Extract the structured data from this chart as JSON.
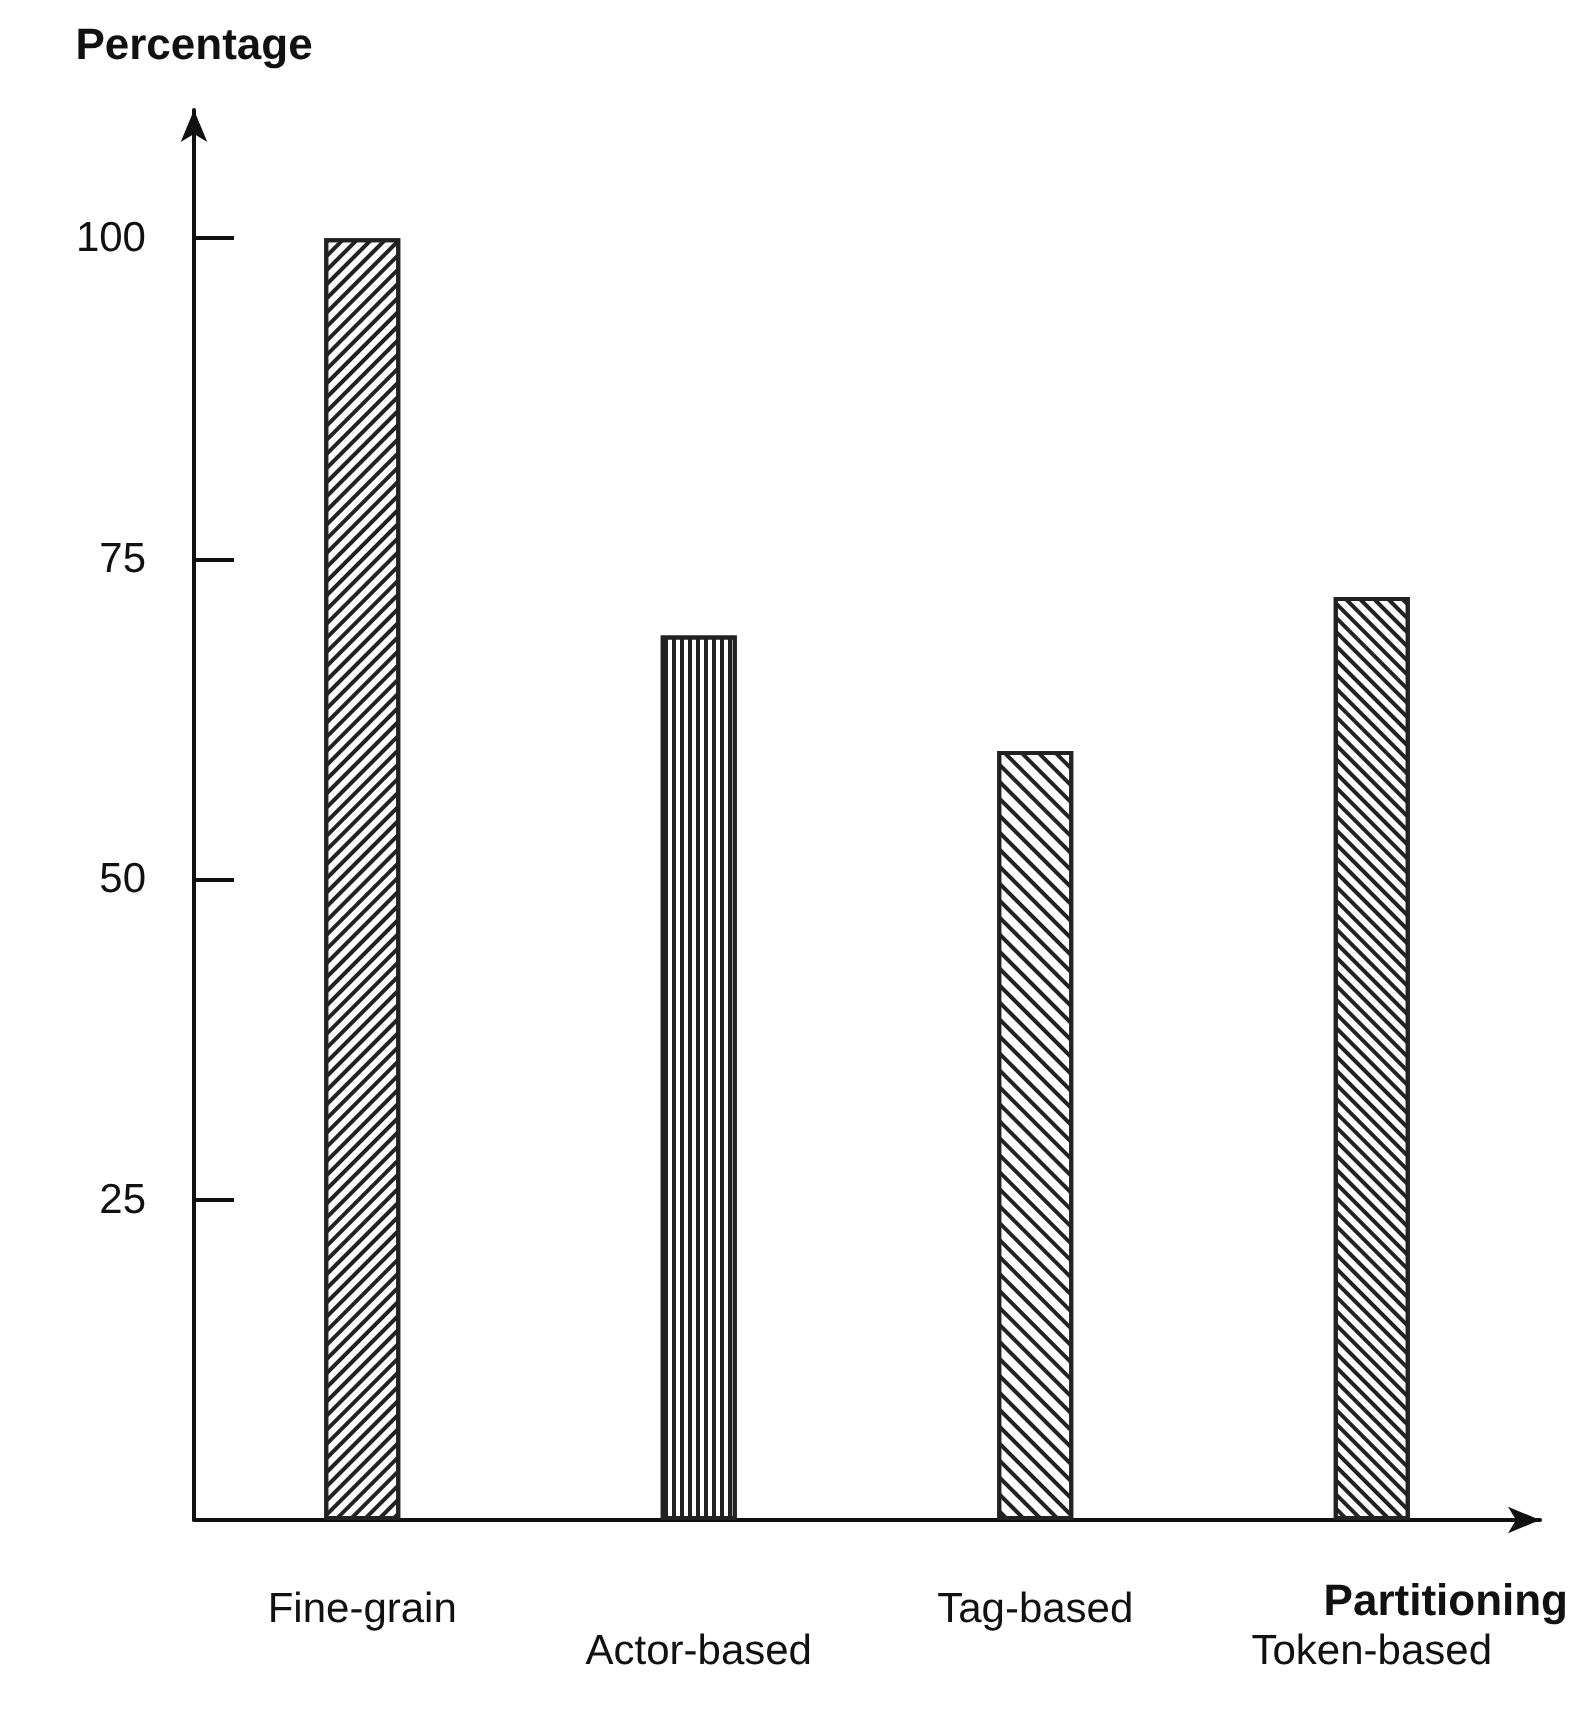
{
  "chart_data": {
    "type": "bar",
    "xlabel": "Partitioning",
    "ylabel": "Percentage",
    "categories": [
      "Fine-grain",
      "Actor-based",
      "Tag-based",
      "Token-based"
    ],
    "values": [
      100,
      69,
      60,
      72
    ],
    "ylim": [
      0,
      110
    ],
    "yticks": [
      25,
      50,
      75,
      100
    ],
    "grid": false
  }
}
